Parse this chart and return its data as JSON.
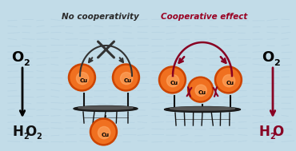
{
  "bg_color": "#c2dce8",
  "border_color": "#111111",
  "title_no_coop": "No cooperativity",
  "title_coop": "Cooperative effect",
  "title_no_coop_color": "#2a2a2a",
  "title_coop_color": "#990022",
  "left_o2": "O",
  "left_o2_sub": "2",
  "right_o2": "O",
  "right_o2_sub": "2",
  "left_product": "H",
  "left_product_sub1": "2",
  "left_product_sub2": "O",
  "left_product_sub3": "2",
  "right_product": "H",
  "right_product_sub1": "2",
  "right_product_sub2": "O",
  "left_product_color": "#111111",
  "right_product_color": "#880022",
  "cu_color_center": "#f07020",
  "cu_color_edge": "#cc4400",
  "cu_highlight": "#ffaa66",
  "cu_text": "Cu",
  "arrow_no_coop_color": "#333333",
  "arrow_coop_color": "#880022",
  "water_color": "#aaccdd"
}
